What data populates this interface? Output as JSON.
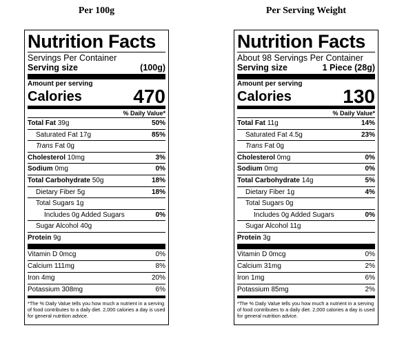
{
  "headers": {
    "left": "Per 100g",
    "right": "Per Serving Weight"
  },
  "labels": [
    {
      "title": "Nutrition Facts",
      "servings_per_container": "Servings Per Container",
      "serving_size_label": "Serving size",
      "serving_size_value": "(100g)",
      "amount_per_serving": "Amount per serving",
      "calories_label": "Calories",
      "calories_value": "470",
      "dv_header": "% Daily Value*",
      "total_fat": {
        "name": "Total Fat",
        "amount": "39g",
        "dv": "50%"
      },
      "saturated_fat": {
        "name": "Saturated Fat",
        "amount": "17g",
        "dv": "85%"
      },
      "trans_fat": {
        "name": "Trans",
        "suffix": "Fat 0g"
      },
      "cholesterol": {
        "name": "Cholesterol",
        "amount": "10mg",
        "dv": "3%"
      },
      "sodium": {
        "name": "Sodium",
        "amount": "0mg",
        "dv": "0%"
      },
      "total_carb": {
        "name": "Total Carbohydrate",
        "amount": "50g",
        "dv": "18%"
      },
      "fiber": {
        "name": "Dietary Fiber",
        "amount": "5g",
        "dv": "18%"
      },
      "total_sugars": {
        "name": "Total Sugars",
        "amount": "1g"
      },
      "added_sugars": {
        "name": "Includes 0g Added Sugars",
        "dv": "0%"
      },
      "sugar_alcohol": {
        "name": "Sugar Alcohol",
        "amount": "40g"
      },
      "protein": {
        "name": "Protein",
        "amount": "9g"
      },
      "vitamin_d": {
        "name": "Vitamin D 0mcg",
        "dv": "0%"
      },
      "calcium": {
        "name": "Calcium 111mg",
        "dv": "8%"
      },
      "iron": {
        "name": "Iron 4mg",
        "dv": "20%"
      },
      "potassium": {
        "name": "Potassium 308mg",
        "dv": "6%"
      },
      "footnote": "*The % Daily Value tells you how much a nutrient in a serving of food contributes to a daily diet. 2,000 calories a day is used for general nutrition advice."
    },
    {
      "title": "Nutrition Facts",
      "servings_per_container": "About 98 Servings Per Container",
      "serving_size_label": "Serving size",
      "serving_size_value": "1 Piece (28g)",
      "amount_per_serving": "Amount per serving",
      "calories_label": "Calories",
      "calories_value": "130",
      "dv_header": "% Daily Value*",
      "total_fat": {
        "name": "Total Fat",
        "amount": "11g",
        "dv": "14%"
      },
      "saturated_fat": {
        "name": "Saturated Fat",
        "amount": "4.5g",
        "dv": "23%"
      },
      "trans_fat": {
        "name": "Trans",
        "suffix": "Fat 0g"
      },
      "cholesterol": {
        "name": "Cholesterol",
        "amount": "0mg",
        "dv": "0%"
      },
      "sodium": {
        "name": "Sodium",
        "amount": "0mg",
        "dv": "0%"
      },
      "total_carb": {
        "name": "Total Carbohydrate",
        "amount": "14g",
        "dv": "5%"
      },
      "fiber": {
        "name": "Dietary Fiber",
        "amount": "1g",
        "dv": "4%"
      },
      "total_sugars": {
        "name": "Total Sugars",
        "amount": "0g"
      },
      "added_sugars": {
        "name": "Includes 0g Added Sugars",
        "dv": "0%"
      },
      "sugar_alcohol": {
        "name": "Sugar Alcohol",
        "amount": "11g"
      },
      "protein": {
        "name": "Protein",
        "amount": "3g"
      },
      "vitamin_d": {
        "name": "Vitamin D 0mcg",
        "dv": "0%"
      },
      "calcium": {
        "name": "Calcium 31mg",
        "dv": "2%"
      },
      "iron": {
        "name": "Iron 1mg",
        "dv": "6%"
      },
      "potassium": {
        "name": "Potassium 85mg",
        "dv": "2%"
      },
      "footnote": "*The % Daily Value tells you how much a nutrient in a serving of food contributes to a daily diet. 2,000 calories a day is used for general nutrition advice."
    }
  ]
}
